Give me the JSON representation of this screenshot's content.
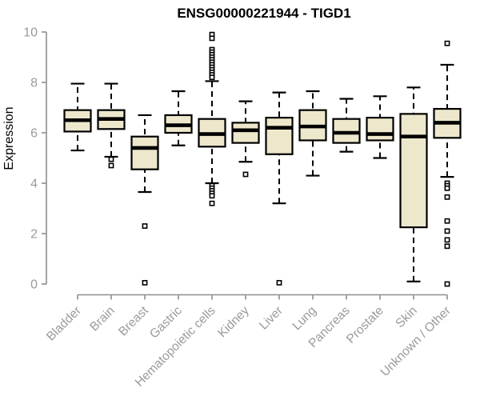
{
  "title": "ENSG00000221944 - TIGD1",
  "chart_data": {
    "type": "box",
    "title": "ENSG00000221944 - TIGD1",
    "ylabel": "Expression",
    "xlabel": "",
    "ylim": [
      0,
      10
    ],
    "yticks": [
      0,
      2,
      4,
      6,
      8,
      10
    ],
    "grid": false,
    "legend": "none",
    "categories": [
      "Bladder",
      "Brain",
      "Breast",
      "Gastric",
      "Hematopoietic cells",
      "Kidney",
      "Liver",
      "Lung",
      "Pancreas",
      "Prostate",
      "Skin",
      "Unknown / Other"
    ],
    "series": [
      {
        "category": "Bladder",
        "whisker_low": 5.3,
        "q1": 6.05,
        "median": 6.5,
        "q3": 6.9,
        "whisker_high": 7.95,
        "outliers": []
      },
      {
        "category": "Brain",
        "whisker_low": 5.05,
        "q1": 6.15,
        "median": 6.55,
        "q3": 6.9,
        "whisker_high": 7.95,
        "outliers": [
          4.95,
          4.7
        ]
      },
      {
        "category": "Breast",
        "whisker_low": 3.65,
        "q1": 4.55,
        "median": 5.4,
        "q3": 5.85,
        "whisker_high": 6.7,
        "outliers": [
          2.3,
          0.05
        ]
      },
      {
        "category": "Gastric",
        "whisker_low": 5.5,
        "q1": 6.0,
        "median": 6.3,
        "q3": 6.7,
        "whisker_high": 7.65,
        "outliers": []
      },
      {
        "category": "Hematopoietic cells",
        "whisker_low": 4.0,
        "q1": 5.45,
        "median": 5.95,
        "q3": 6.55,
        "whisker_high": 8.05,
        "outliers": [
          9.9,
          9.75,
          9.3,
          9.2,
          9.1,
          9.0,
          8.9,
          8.8,
          8.7,
          8.6,
          8.5,
          8.4,
          8.3,
          8.2,
          3.9,
          3.8,
          3.7,
          3.6,
          3.5,
          3.2
        ]
      },
      {
        "category": "Kidney",
        "whisker_low": 4.85,
        "q1": 5.6,
        "median": 6.1,
        "q3": 6.4,
        "whisker_high": 7.25,
        "outliers": [
          4.35
        ]
      },
      {
        "category": "Liver",
        "whisker_low": 3.2,
        "q1": 5.15,
        "median": 6.2,
        "q3": 6.6,
        "whisker_high": 7.6,
        "outliers": [
          0.05
        ]
      },
      {
        "category": "Lung",
        "whisker_low": 4.3,
        "q1": 5.7,
        "median": 6.25,
        "q3": 6.9,
        "whisker_high": 7.65,
        "outliers": []
      },
      {
        "category": "Pancreas",
        "whisker_low": 5.25,
        "q1": 5.6,
        "median": 6.0,
        "q3": 6.55,
        "whisker_high": 7.35,
        "outliers": []
      },
      {
        "category": "Prostate",
        "whisker_low": 5.0,
        "q1": 5.7,
        "median": 5.95,
        "q3": 6.6,
        "whisker_high": 7.45,
        "outliers": []
      },
      {
        "category": "Skin",
        "whisker_low": 0.1,
        "q1": 2.25,
        "median": 5.85,
        "q3": 6.75,
        "whisker_high": 7.8,
        "outliers": []
      },
      {
        "category": "Unknown / Other",
        "whisker_low": 4.25,
        "q1": 5.8,
        "median": 6.4,
        "q3": 6.95,
        "whisker_high": 8.7,
        "outliers": [
          9.55,
          4.0,
          3.9,
          3.8,
          3.45,
          2.5,
          2.1,
          1.75,
          1.5,
          0.0
        ]
      }
    ],
    "colors": {
      "box_fill": "#EDE8CC",
      "box_stroke": "#000000",
      "median": "#000000",
      "whisker": "#000000",
      "outlier_stroke": "#000000",
      "outlier_fill": "#ffffff",
      "axis_line": "#8e8e8e",
      "axis_text": "#9a9a9a",
      "title": "#000000",
      "background": "#ffffff"
    }
  }
}
